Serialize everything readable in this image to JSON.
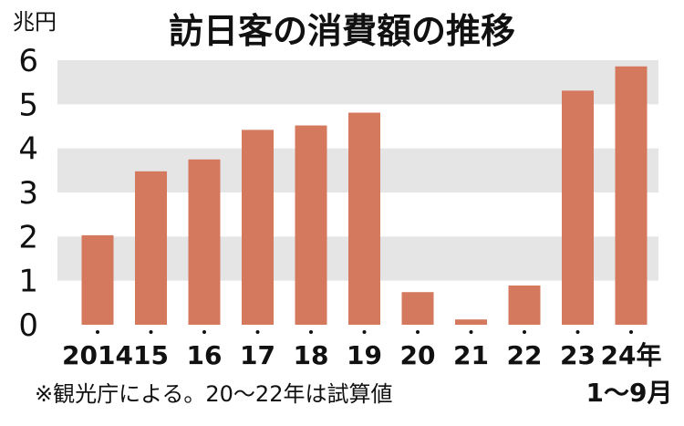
{
  "chart_data": {
    "type": "bar",
    "title": "訪日客の消費額の推移",
    "unit": "兆円",
    "categories": [
      "2014",
      "15",
      "16",
      "17",
      "18",
      "19",
      "20",
      "21",
      "22",
      "23",
      "24年"
    ],
    "category_sublabel": "1～9月",
    "values": [
      2.03,
      3.48,
      3.75,
      4.42,
      4.52,
      4.81,
      0.74,
      0.12,
      0.89,
      5.31,
      5.86
    ],
    "ylim": [
      0,
      6
    ],
    "yticks": [
      0,
      1,
      2,
      3,
      4,
      5,
      6
    ],
    "bar_color": "#d4795d",
    "band_color": "#e5e5e5",
    "grid": "alternating horizontal bands",
    "note": "※観光庁による。20～22年は試算値"
  }
}
